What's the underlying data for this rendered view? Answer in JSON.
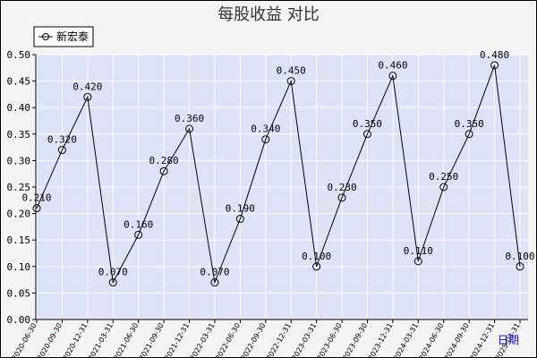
{
  "chart_data": {
    "type": "line",
    "title": "每股收益  对比",
    "xlabel": "日期",
    "ylabel": "",
    "ylim": [
      0,
      0.5
    ],
    "yticks": [
      "0.00",
      "0.05",
      "0.10",
      "0.15",
      "0.20",
      "0.25",
      "0.30",
      "0.35",
      "0.40",
      "0.45",
      "0.50"
    ],
    "legend_position": "top-left",
    "grid": true,
    "x": [
      "2020-06-30",
      "2020-09-30",
      "2020-12-31",
      "2021-03-31",
      "2021-06-30",
      "2021-09-30",
      "2021-12-31",
      "2022-03-31",
      "2022-06-30",
      "2022-09-30",
      "2022-12-31",
      "2023-03-31",
      "2023-06-30",
      "2023-09-30",
      "2023-12-31",
      "2024-03-31",
      "2024-06-30",
      "2024-09-30",
      "2024-12-31",
      "2025-03-31"
    ],
    "series": [
      {
        "name": "新宏泰",
        "color": "#000000",
        "values": [
          0.21,
          0.32,
          0.42,
          0.07,
          0.16,
          0.28,
          0.36,
          0.07,
          0.19,
          0.34,
          0.45,
          0.1,
          0.23,
          0.35,
          0.46,
          0.11,
          0.25,
          0.35,
          0.48,
          0.1
        ],
        "labels": [
          "0.210",
          "0.320",
          "0.420",
          "0.070",
          "0.160",
          "0.280",
          "0.360",
          "0.070",
          "0.190",
          "0.340",
          "0.450",
          "0.100",
          "0.230",
          "0.350",
          "0.460",
          "0.110",
          "0.250",
          "0.350",
          "0.480",
          "0.100"
        ]
      }
    ],
    "colors": {
      "plot_bg": "#dde2f7",
      "grid": "#ffffff",
      "axis_line": "#000000"
    }
  }
}
